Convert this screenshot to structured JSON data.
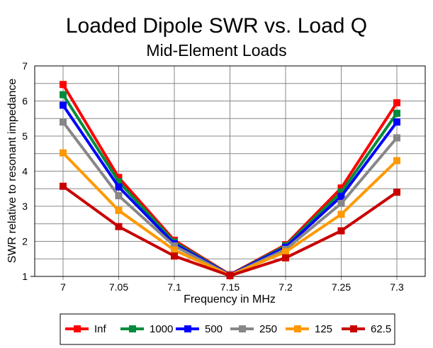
{
  "chart_data": {
    "type": "line",
    "title": "Loaded Dipole SWR vs. Load Q",
    "subtitle": "Mid-Element Loads",
    "xlabel": "Frequency in MHz",
    "ylabel": "SWR relative to resonant impedance",
    "x": [
      7,
      7.05,
      7.1,
      7.15,
      7.2,
      7.25,
      7.3
    ],
    "x_tick_labels": [
      "7",
      "7.05",
      "7.1",
      "7.15",
      "7.2",
      "7.25",
      "7.3"
    ],
    "y_tick_labels": [
      "1",
      "2",
      "3",
      "4",
      "5",
      "6",
      "7"
    ],
    "ylim": [
      1,
      7
    ],
    "grid": true,
    "legend_position": "bottom",
    "series": [
      {
        "name": "Inf",
        "color": "#ff0000",
        "values": [
          6.47,
          3.82,
          2.03,
          1.05,
          1.9,
          3.52,
          5.95
        ]
      },
      {
        "name": "1000",
        "color": "#008c3c",
        "values": [
          6.18,
          3.7,
          1.98,
          1.04,
          1.87,
          3.4,
          5.65
        ]
      },
      {
        "name": "500",
        "color": "#0000ff",
        "values": [
          5.88,
          3.55,
          1.93,
          1.04,
          1.83,
          3.28,
          5.4
        ]
      },
      {
        "name": "250",
        "color": "#878787",
        "values": [
          5.4,
          3.3,
          1.87,
          1.03,
          1.77,
          3.08,
          4.95
        ]
      },
      {
        "name": "125",
        "color": "#ff9900",
        "values": [
          4.52,
          2.88,
          1.75,
          1.03,
          1.7,
          2.77,
          4.3
        ]
      },
      {
        "name": "62.5",
        "color": "#c80000",
        "values": [
          3.57,
          2.42,
          1.58,
          1.02,
          1.53,
          2.3,
          3.4
        ]
      }
    ]
  }
}
